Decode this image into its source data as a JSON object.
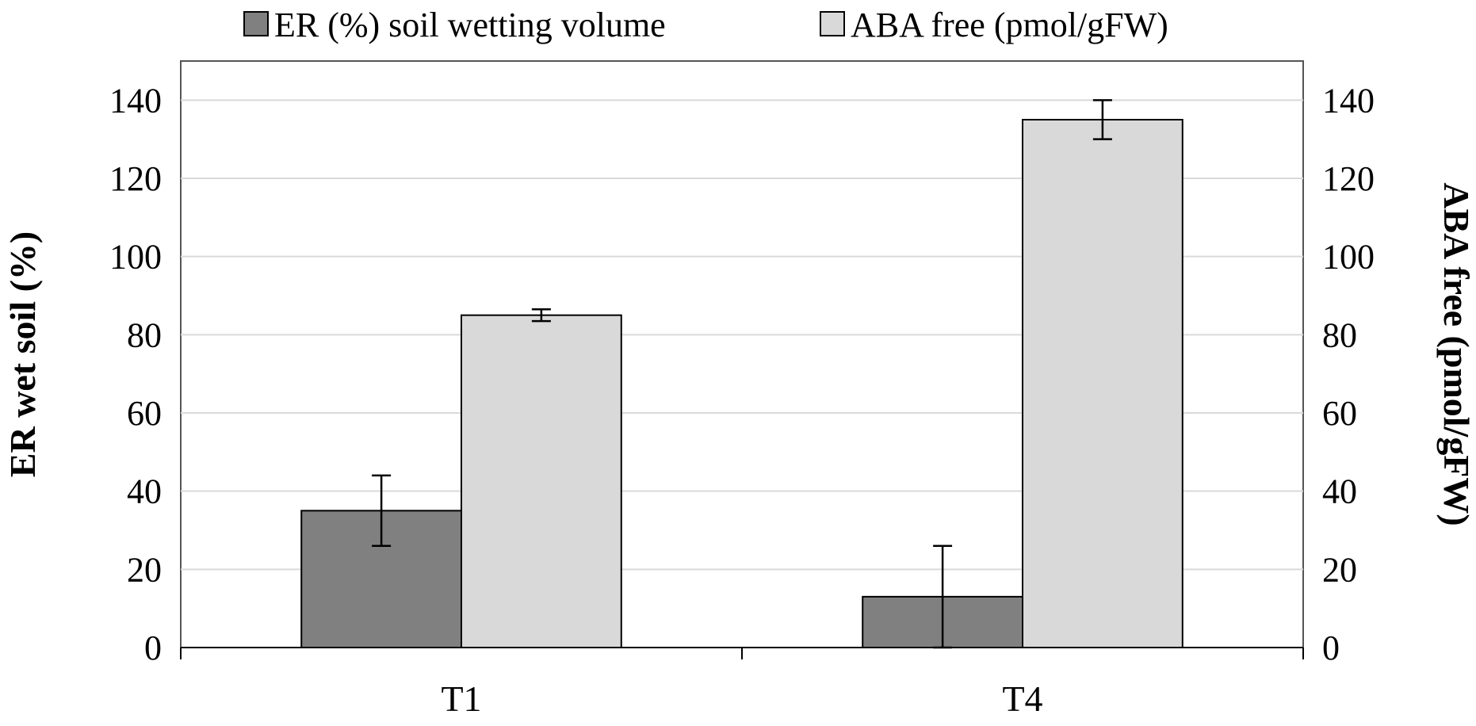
{
  "chart_data": {
    "type": "bar",
    "categories": [
      "T1",
      "T4"
    ],
    "series": [
      {
        "name": "ER (%) soil wetting volume",
        "axis": "left",
        "color": "#808080",
        "values": [
          35,
          13
        ],
        "errors": [
          9,
          13
        ]
      },
      {
        "name": "ABA free (pmol/gFW)",
        "axis": "right",
        "color": "#d9d9d9",
        "values": [
          85,
          135
        ],
        "errors": [
          1.5,
          5
        ]
      }
    ],
    "ylabel": "ER wet  soil (%)",
    "y2label": "ABA free (pmol/gFW)",
    "ylim": [
      0,
      150
    ],
    "y2lim": [
      0,
      150
    ],
    "yticks": [
      0,
      20,
      40,
      60,
      80,
      100,
      120,
      140
    ],
    "y2ticks": [
      0,
      20,
      40,
      60,
      80,
      100,
      120,
      140
    ],
    "grid": true,
    "legend_position": "top"
  }
}
